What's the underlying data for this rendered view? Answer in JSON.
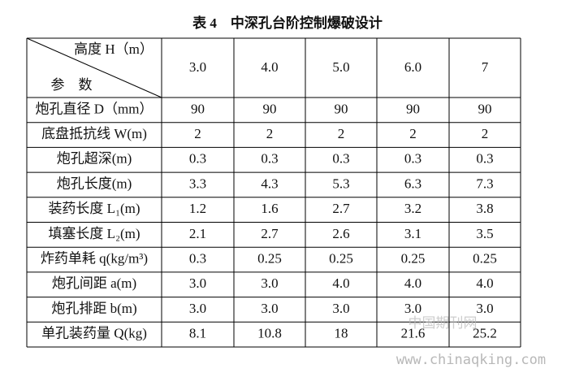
{
  "title": "表 4　中深孔台阶控制爆破设计",
  "table": {
    "corner": {
      "column_label": "高度 H（m）",
      "row_label": "参　数"
    },
    "columns": [
      "3.0",
      "4.0",
      "5.0",
      "6.0",
      "7"
    ],
    "rows": [
      {
        "label": "炮孔直径 D（mm）",
        "cells": [
          "90",
          "90",
          "90",
          "90",
          "90"
        ]
      },
      {
        "label": "底盘抵抗线 W(m)",
        "cells": [
          "2",
          "2",
          "2",
          "2",
          "2"
        ]
      },
      {
        "label": "炮孔超深(m)",
        "cells": [
          "0.3",
          "0.3",
          "0.3",
          "0.3",
          "0.3"
        ]
      },
      {
        "label": "炮孔长度(m)",
        "cells": [
          "3.3",
          "4.3",
          "5.3",
          "6.3",
          "7.3"
        ]
      },
      {
        "label": "装药长度 L₁(m)",
        "cells": [
          "1.2",
          "1.6",
          "2.7",
          "3.2",
          "3.8"
        ]
      },
      {
        "label": "填塞长度 L₂(m)",
        "cells": [
          "2.1",
          "2.7",
          "2.6",
          "3.1",
          "3.5"
        ]
      },
      {
        "label": "炸药单耗 q(kg/m³)",
        "cells": [
          "0.3",
          "0.25",
          "0.25",
          "0.25",
          "0.25"
        ]
      },
      {
        "label": "炮孔间距 a(m)",
        "cells": [
          "3.0",
          "3.0",
          "4.0",
          "4.0",
          "4.0"
        ]
      },
      {
        "label": "炮孔排距 b(m)",
        "cells": [
          "3.0",
          "3.0",
          "3.0",
          "3.0",
          "3.0"
        ]
      },
      {
        "label": "单孔装药量 Q(kg)",
        "cells": [
          "8.1",
          "10.8",
          "18",
          "21.6",
          "25.2"
        ]
      }
    ]
  },
  "watermark": {
    "logo": "中国期刊网",
    "url": "www.chinaqking.com"
  }
}
